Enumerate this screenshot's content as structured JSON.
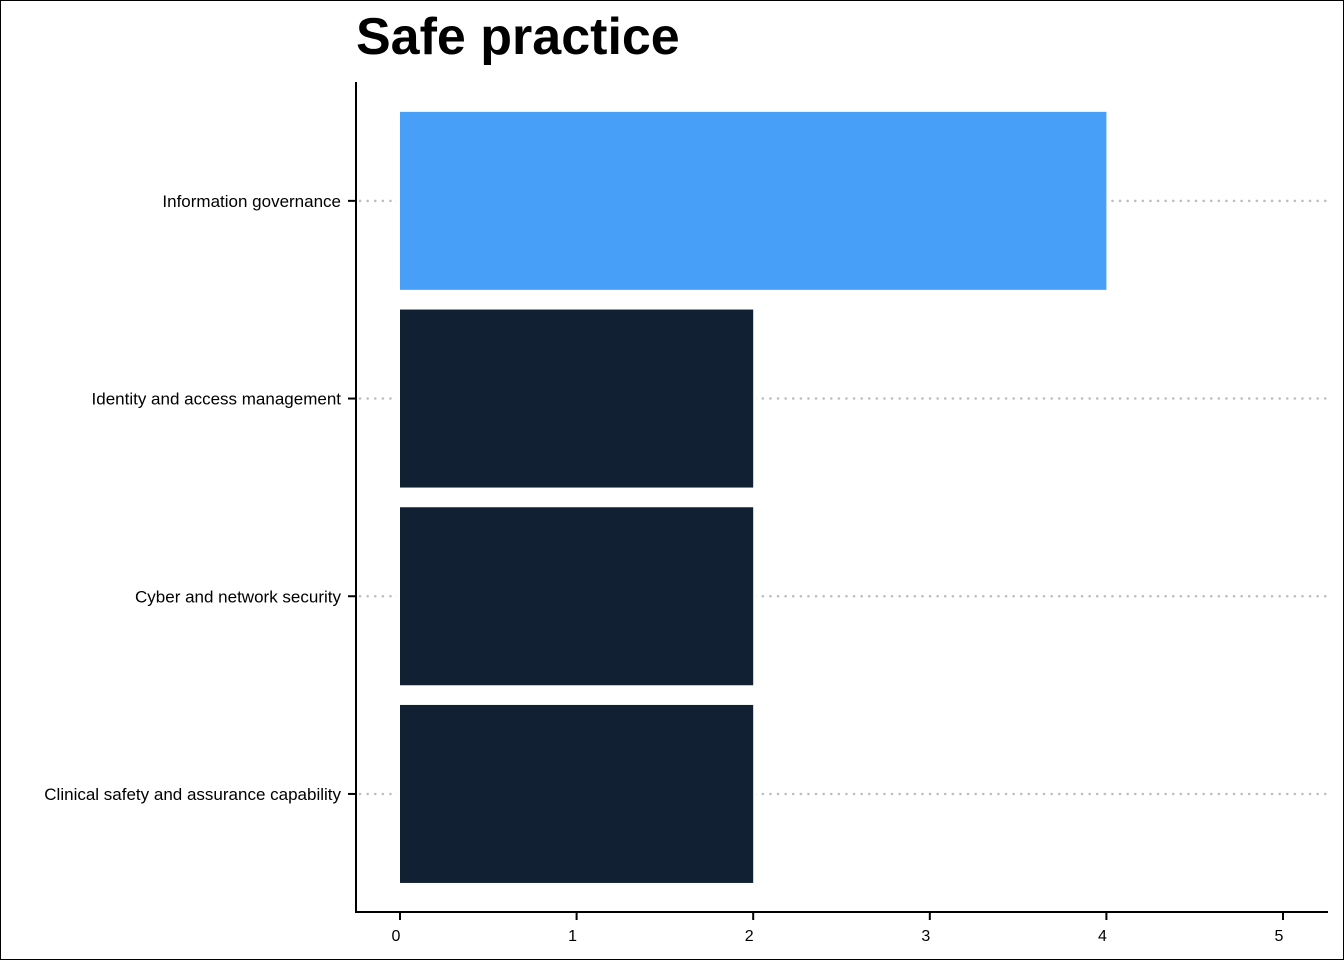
{
  "chart_data": {
    "type": "bar",
    "orientation": "horizontal",
    "title": "Safe practice",
    "xlabel": "",
    "ylabel": "",
    "categories": [
      "Information governance",
      "Identity and access management",
      "Cyber and network security",
      "Clinical safety and assurance capability"
    ],
    "values": [
      4,
      2,
      2,
      2
    ],
    "bar_colors": [
      "#489ff8",
      "#122033",
      "#122033",
      "#122033"
    ],
    "highlight_color": "#489ff8",
    "base_color": "#122033",
    "xlim": [
      0,
      5.2
    ],
    "xticks": [
      0,
      1,
      2,
      3,
      4,
      5
    ],
    "grid": "horizontal dotted",
    "legend": "none"
  }
}
